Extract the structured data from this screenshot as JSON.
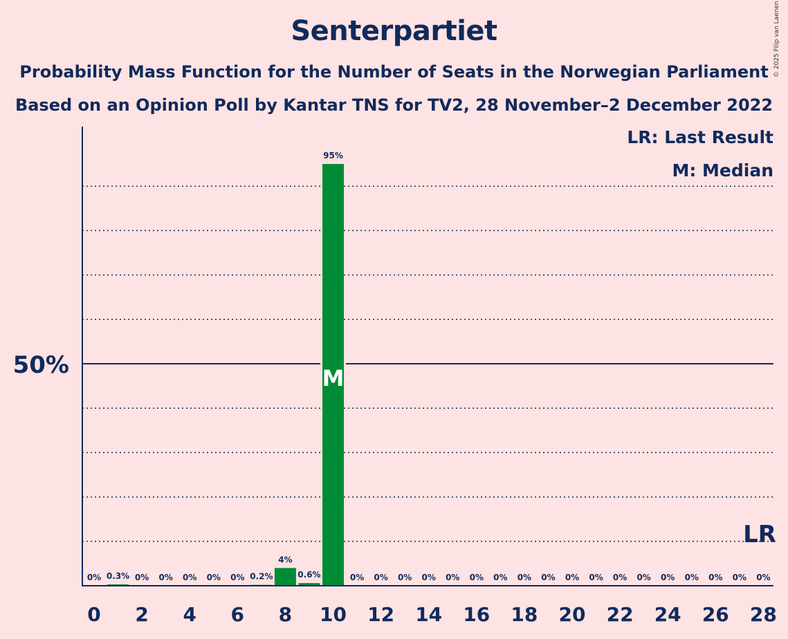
{
  "header": {
    "title": "Senterpartiet",
    "subtitle": "Probability Mass Function for the Number of Seats in the Norwegian Parliament",
    "source": "Based on an Opinion Poll by Kantar TNS for TV2, 28 November–2 December 2022",
    "copyright": "© 2025 Filip van Laenen"
  },
  "legend": {
    "last_result": "LR: Last Result",
    "median": "M: Median"
  },
  "colors": {
    "background": "#FDE3E3",
    "bar": "#008C36",
    "text": "#102A5C"
  },
  "chart_data": {
    "type": "bar",
    "x": [
      0,
      1,
      2,
      3,
      4,
      5,
      6,
      7,
      8,
      9,
      10,
      11,
      12,
      13,
      14,
      15,
      16,
      17,
      18,
      19,
      20,
      21,
      22,
      23,
      24,
      25,
      26,
      27,
      28
    ],
    "values": [
      0,
      0.3,
      0,
      0,
      0,
      0,
      0,
      0.2,
      4,
      0.6,
      95,
      0,
      0,
      0,
      0,
      0,
      0,
      0,
      0,
      0,
      0,
      0,
      0,
      0,
      0,
      0,
      0,
      0,
      0
    ],
    "labels": [
      "0%",
      "0.3%",
      "0%",
      "0%",
      "0%",
      "0%",
      "0%",
      "0.2%",
      "4%",
      "0.6%",
      "95%",
      "0%",
      "0%",
      "0%",
      "0%",
      "0%",
      "0%",
      "0%",
      "0%",
      "0%",
      "0%",
      "0%",
      "0%",
      "0%",
      "0%",
      "0%",
      "0%",
      "0%",
      "0%"
    ],
    "xticks": [
      "0",
      "2",
      "4",
      "6",
      "8",
      "10",
      "12",
      "14",
      "16",
      "18",
      "20",
      "22",
      "24",
      "26",
      "28"
    ],
    "ylim": [
      0,
      100
    ],
    "ytick_label": "50%",
    "median_seat": 10,
    "median_marker": "M",
    "last_result_seat": 28,
    "last_result_marker": "LR",
    "gridlines": [
      10,
      20,
      30,
      40,
      60,
      70,
      80,
      90
    ]
  }
}
